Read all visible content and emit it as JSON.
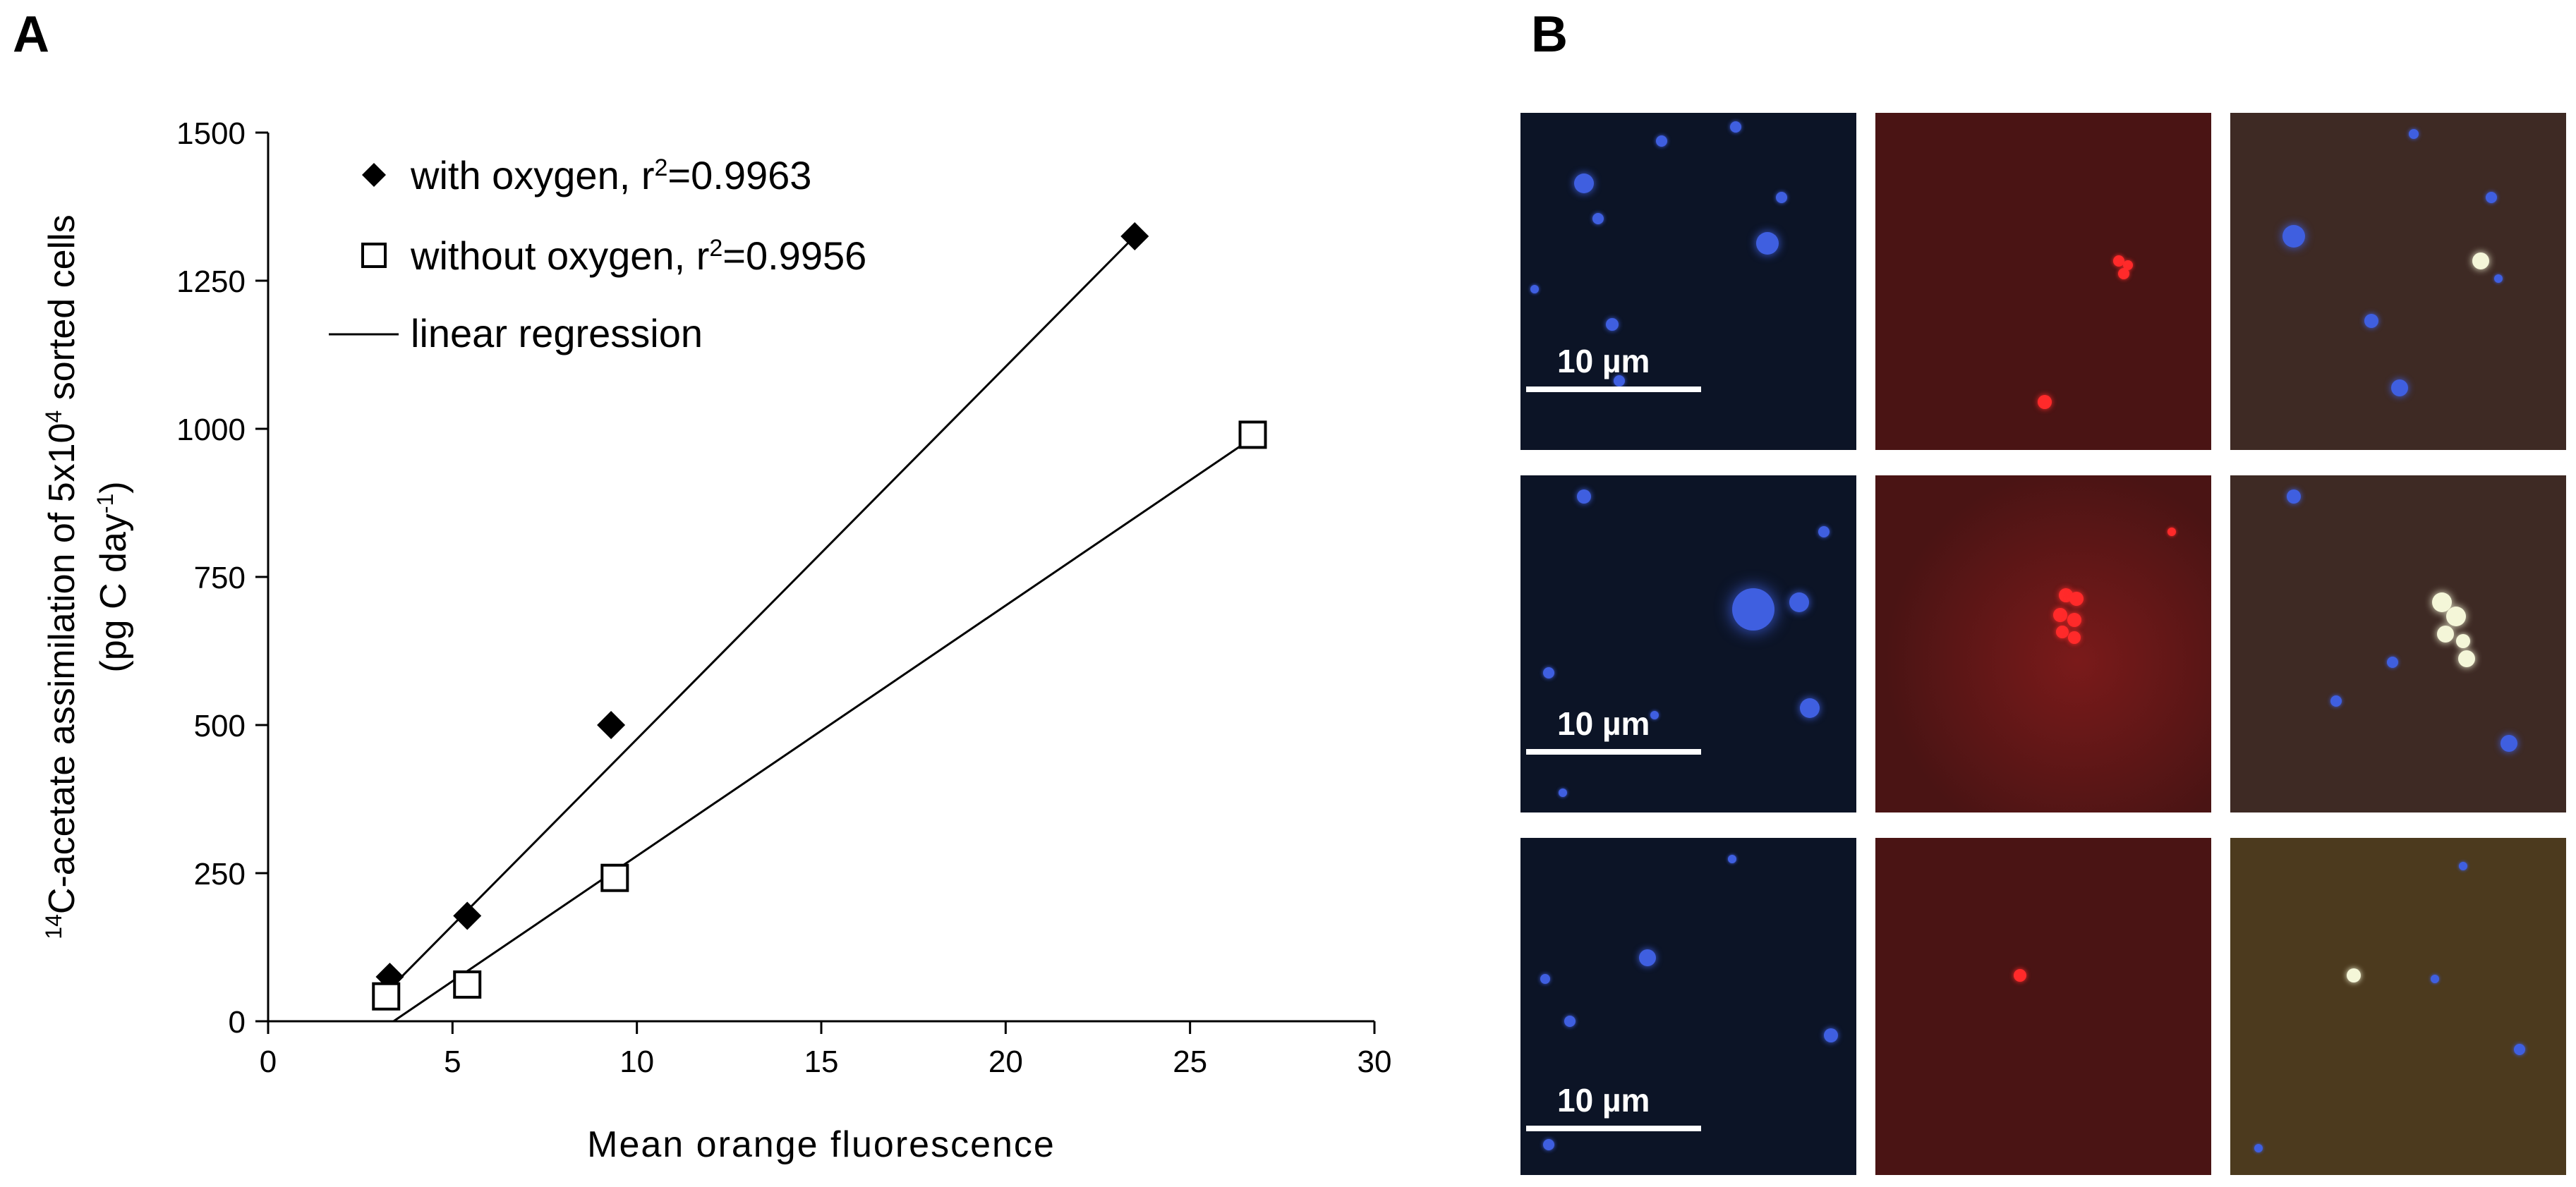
{
  "panel_a": {
    "letter": "A"
  },
  "panel_b": {
    "letter": "B",
    "scale_bar_label": "10 µm",
    "rows": [
      {
        "tiles": [
          {
            "channel": "blue"
          },
          {
            "channel": "red"
          },
          {
            "channel": "overlay"
          }
        ]
      },
      {
        "tiles": [
          {
            "channel": "blue"
          },
          {
            "channel": "red"
          },
          {
            "channel": "overlay"
          }
        ]
      },
      {
        "tiles": [
          {
            "channel": "blue"
          },
          {
            "channel": "red"
          },
          {
            "channel": "overlay"
          }
        ]
      }
    ],
    "colors": {
      "blue_bg": "#0c1426",
      "red_bg": "#4a1414",
      "overlay_bg": "#3e2a24",
      "overlay_bg_row3": "#4c3a1e",
      "dapi": "#3f5fe0",
      "probe": "#ff2a2a"
    }
  },
  "chart_data": {
    "type": "scatter",
    "title": "",
    "xlabel": "Mean orange fluorescence",
    "ylabel_line1_sup": "14",
    "ylabel_line1_a": "C-acetate assimilation of 5x10",
    "ylabel_line1_sup2": "4",
    "ylabel_line1_b": " sorted cells",
    "ylabel_line2_a": "(pg C day",
    "ylabel_line2_sup": "-1",
    "ylabel_line2_b": ")",
    "xlim": [
      0,
      30
    ],
    "ylim": [
      0,
      1500
    ],
    "xticks": [
      0,
      5,
      10,
      15,
      20,
      25,
      30
    ],
    "yticks": [
      0,
      250,
      500,
      750,
      1000,
      1250,
      1500
    ],
    "grid": false,
    "legend_position": "top-left",
    "legend": {
      "with_oxygen": {
        "text": "with oxygen, r",
        "sup": "2",
        "tail": "=0.9963"
      },
      "without_oxygen": {
        "text": "without oxygen, r",
        "sup": "2",
        "tail": "=0.9956"
      },
      "regression": {
        "text": "linear regression"
      }
    },
    "series": [
      {
        "name": "with oxygen",
        "marker": "diamond-filled",
        "points": [
          {
            "x": 3.3,
            "y": 75
          },
          {
            "x": 5.4,
            "y": 178
          },
          {
            "x": 9.3,
            "y": 500
          },
          {
            "x": 23.5,
            "y": 1325
          }
        ],
        "fit": {
          "x": [
            3.3,
            23.5
          ],
          "y": [
            55,
            1325
          ]
        }
      },
      {
        "name": "without oxygen",
        "marker": "square-open",
        "points": [
          {
            "x": 3.2,
            "y": 42
          },
          {
            "x": 5.4,
            "y": 62
          },
          {
            "x": 9.4,
            "y": 242
          },
          {
            "x": 26.7,
            "y": 990
          }
        ],
        "fit": {
          "x": [
            3.4,
            26.7
          ],
          "y": [
            0,
            985
          ]
        }
      }
    ]
  }
}
